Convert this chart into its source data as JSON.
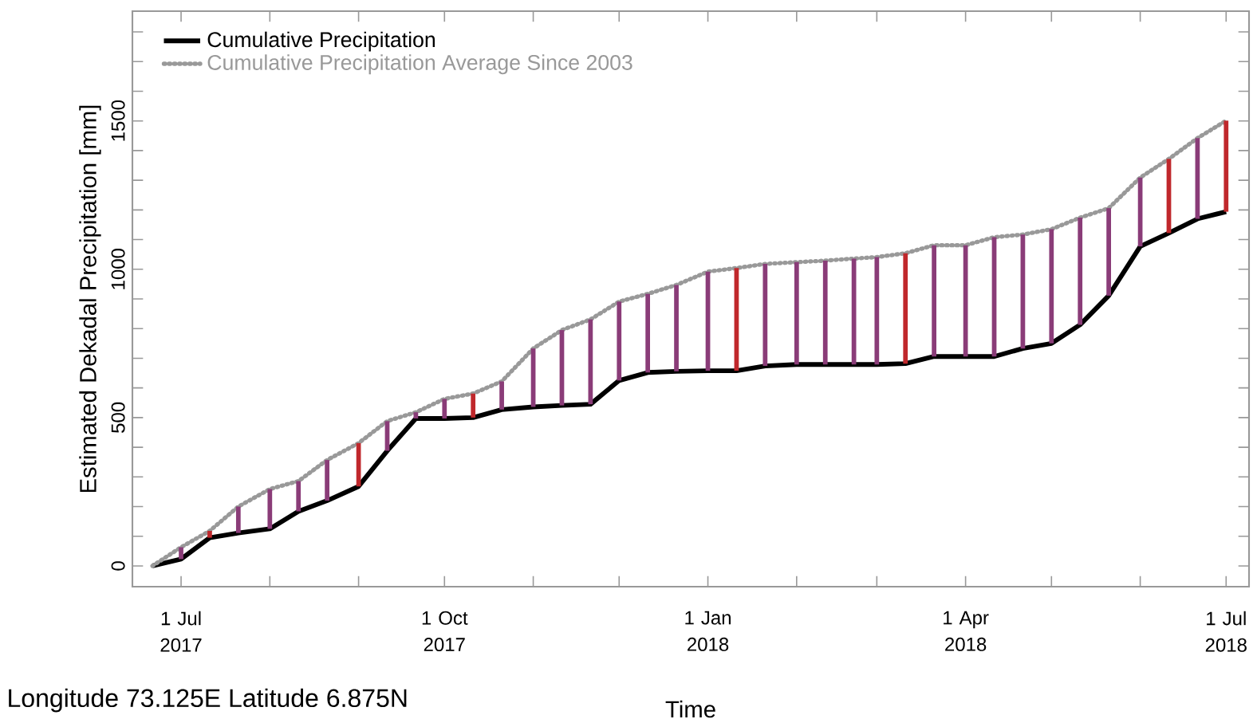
{
  "chart_data": {
    "type": "line",
    "xlabel": "Time",
    "ylabel": "Estimated Dekadal Precipitation [mm]",
    "annotations": [
      "Longitude 73.125E Latitude 6.875N"
    ],
    "x": [
      "2017-06-21",
      "2017-07-01",
      "2017-07-11",
      "2017-07-21",
      "2017-08-01",
      "2017-08-11",
      "2017-08-21",
      "2017-09-01",
      "2017-09-11",
      "2017-09-21",
      "2017-10-01",
      "2017-10-11",
      "2017-10-21",
      "2017-11-01",
      "2017-11-11",
      "2017-11-21",
      "2017-12-01",
      "2017-12-11",
      "2017-12-21",
      "2018-01-01",
      "2018-01-11",
      "2018-01-21",
      "2018-02-01",
      "2018-02-11",
      "2018-02-21",
      "2018-03-01",
      "2018-03-11",
      "2018-03-21",
      "2018-04-01",
      "2018-04-11",
      "2018-04-21",
      "2018-05-01",
      "2018-05-11",
      "2018-05-21",
      "2018-06-01",
      "2018-06-11",
      "2018-06-21",
      "2018-07-01"
    ],
    "series": [
      {
        "name": "Cumulative Precipitation",
        "color": "#000000",
        "line_style": "solid",
        "values": [
          0,
          23,
          95,
          111,
          125,
          184,
          220,
          268,
          388,
          497,
          497,
          500,
          527,
          536,
          541,
          545,
          625,
          652,
          656,
          658,
          658,
          674,
          679,
          679,
          679,
          679,
          682,
          706,
          706,
          706,
          733,
          750,
          813,
          911,
          1077,
          1122,
          1170,
          1194
        ]
      },
      {
        "name": "Cumulative Precipitation Average Since 2003",
        "color": "#999999",
        "line_style": "dotted",
        "values": [
          0,
          63,
          118,
          200,
          259,
          286,
          357,
          414,
          488,
          518,
          563,
          581,
          622,
          733,
          795,
          831,
          891,
          917,
          947,
          992,
          1004,
          1018,
          1024,
          1029,
          1036,
          1041,
          1054,
          1081,
          1081,
          1108,
          1117,
          1135,
          1174,
          1206,
          1309,
          1372,
          1442,
          1501
        ]
      },
      {
        "type": "bar",
        "base": [
          null,
          23,
          95,
          111,
          125,
          184,
          220,
          268,
          388,
          497,
          497,
          500,
          527,
          536,
          541,
          545,
          625,
          652,
          656,
          658,
          658,
          674,
          679,
          679,
          679,
          679,
          682,
          706,
          706,
          706,
          733,
          750,
          813,
          911,
          1077,
          1122,
          1170,
          1194
        ],
        "values": [
          null,
          40,
          23,
          89,
          134,
          102,
          137,
          146,
          100,
          21,
          66,
          81,
          95,
          197,
          254,
          286,
          266,
          265,
          291,
          334,
          346,
          344,
          345,
          350,
          357,
          362,
          372,
          375,
          375,
          402,
          384,
          385,
          361,
          295,
          232,
          250,
          272,
          307
        ],
        "colors": [
          "#8a3c78",
          "#8a3c78",
          "#c0282c",
          "#8a3c78",
          "#8a3c78",
          "#8a3c78",
          "#8a3c78",
          "#c0282c",
          "#8a3c78",
          "#8a3c78",
          "#8a3c78",
          "#c0282c",
          "#8a3c78",
          "#8a3c78",
          "#8a3c78",
          "#8a3c78",
          "#8a3c78",
          "#8a3c78",
          "#8a3c78",
          "#8a3c78",
          "#c0282c",
          "#8a3c78",
          "#8a3c78",
          "#8a3c78",
          "#8a3c78",
          "#8a3c78",
          "#c0282c",
          "#8a3c78",
          "#8a3c78",
          "#8a3c78",
          "#8a3c78",
          "#8a3c78",
          "#8a3c78",
          "#8a3c78",
          "#8a3c78",
          "#c0282c",
          "#8a3c78",
          "#c0282c"
        ]
      }
    ],
    "xlim": [
      "2017-06-14",
      "2018-07-09"
    ],
    "xticks": [
      {
        "value": "2017-07-01",
        "label": "1 Jul 2017"
      },
      {
        "value": "2017-08-01",
        "label": null
      },
      {
        "value": "2017-09-01",
        "label": null
      },
      {
        "value": "2017-10-01",
        "label": "1 Oct 2017"
      },
      {
        "value": "2017-11-01",
        "label": null
      },
      {
        "value": "2017-12-01",
        "label": null
      },
      {
        "value": "2018-01-01",
        "label": "1 Jan 2018"
      },
      {
        "value": "2018-02-01",
        "label": null
      },
      {
        "value": "2018-03-01",
        "label": null
      },
      {
        "value": "2018-04-01",
        "label": "1 Apr 2018"
      },
      {
        "value": "2018-05-01",
        "label": null
      },
      {
        "value": "2018-06-01",
        "label": null
      },
      {
        "value": "2018-07-01",
        "label": "1 Jul 2018"
      }
    ],
    "ylim": [
      -70,
      1870
    ],
    "yticks": [
      0,
      {
        "value": 100,
        "label": null
      },
      {
        "value": 200,
        "label": null
      },
      {
        "value": 300,
        "label": null
      },
      {
        "value": 400,
        "label": null
      },
      500,
      {
        "value": 600,
        "label": null
      },
      {
        "value": 700,
        "label": null
      },
      {
        "value": 800,
        "label": null
      },
      {
        "value": 900,
        "label": null
      },
      1000,
      {
        "value": 1100,
        "label": null
      },
      {
        "value": 1200,
        "label": null
      },
      {
        "value": 1300,
        "label": null
      },
      {
        "value": 1400,
        "label": null
      },
      1500,
      {
        "value": 1600,
        "label": null
      },
      {
        "value": 1700,
        "label": null
      },
      {
        "value": 1800,
        "label": null
      }
    ],
    "legend": "top left",
    "marker": "none",
    "grid": false
  }
}
